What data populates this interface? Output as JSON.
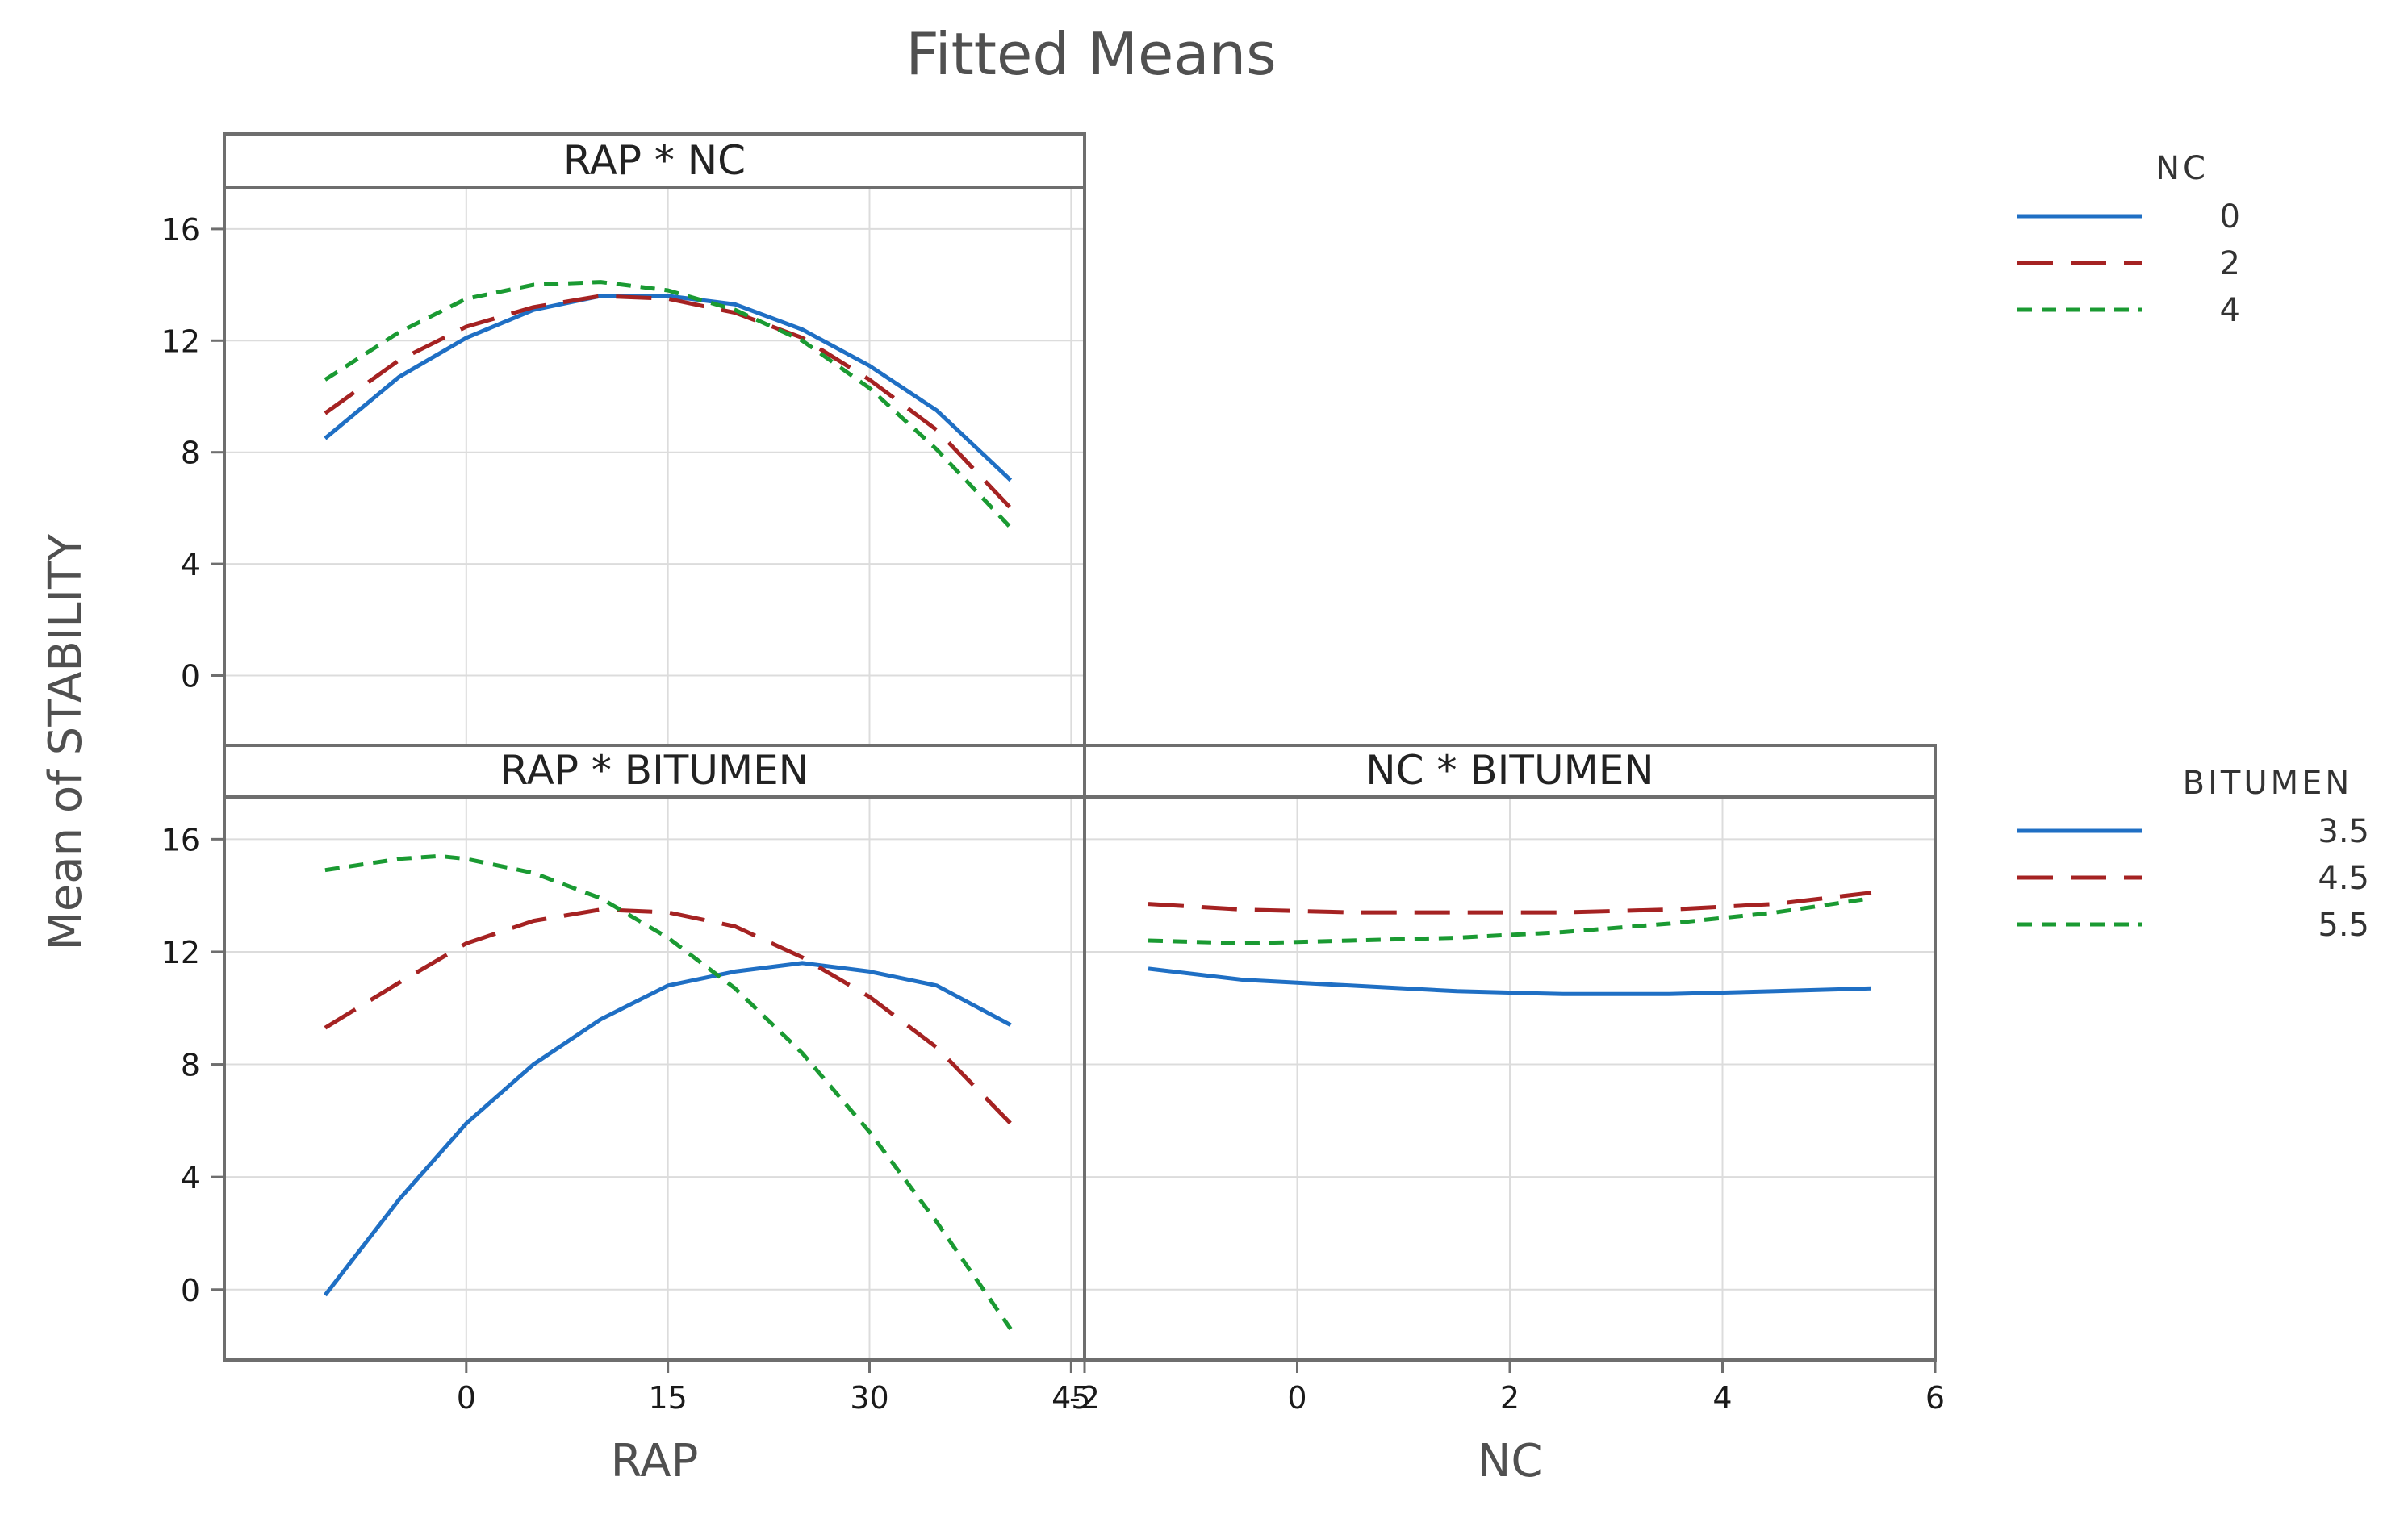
{
  "chart_data": {
    "type": "line",
    "title": "Fitted Means",
    "ylabel": "Mean of STABILITY",
    "colors": {
      "series1": "#1f6fc4",
      "series2": "#a52222",
      "series3": "#1a9a32"
    },
    "y_ticks": [
      "16",
      "12",
      "8",
      "4",
      "0"
    ],
    "ylim": [
      -2.5,
      17.5
    ],
    "panels": [
      {
        "id": "rap-nc",
        "strip": "RAP * NC",
        "xlim": [
          -18,
          46
        ],
        "x_ticks": [
          0,
          15,
          30,
          45
        ],
        "x_tick_labels": [
          "0",
          "15",
          "30",
          "45"
        ],
        "series": [
          {
            "name": "0",
            "style": "solid",
            "x": [
              -10.5,
              -5,
              0,
              5,
              10,
              15,
              20,
              25,
              30,
              35,
              40.5
            ],
            "y": [
              8.5,
              10.7,
              12.1,
              13.1,
              13.6,
              13.6,
              13.3,
              12.4,
              11.1,
              9.5,
              7.0
            ]
          },
          {
            "name": "2",
            "style": "long-dash",
            "x": [
              -10.5,
              -5,
              0,
              5,
              10,
              15,
              20,
              25,
              30,
              35,
              40.5
            ],
            "y": [
              9.4,
              11.3,
              12.5,
              13.2,
              13.6,
              13.5,
              13.0,
              12.1,
              10.6,
              8.8,
              6.0
            ]
          },
          {
            "name": "4",
            "style": "short-dash",
            "x": [
              -10.5,
              -5,
              0,
              5,
              10,
              15,
              20,
              25,
              30,
              35,
              40.5
            ],
            "y": [
              10.6,
              12.3,
              13.5,
              14.0,
              14.1,
              13.8,
              13.1,
              12.0,
              10.3,
              8.1,
              5.3
            ]
          }
        ]
      },
      {
        "id": "rap-bitumen",
        "strip": "RAP * BITUMEN",
        "xlabel": "RAP",
        "xlim": [
          -18,
          46
        ],
        "x_ticks": [
          0,
          15,
          30,
          45
        ],
        "x_tick_labels": [
          "0",
          "15",
          "30",
          "45"
        ],
        "series": [
          {
            "name": "3.5",
            "style": "solid",
            "x": [
              -10.5,
              -5,
              0,
              5,
              10,
              15,
              20,
              25,
              30,
              35,
              40.5
            ],
            "y": [
              -0.2,
              3.2,
              5.9,
              8.0,
              9.6,
              10.8,
              11.3,
              11.6,
              11.3,
              10.8,
              9.4
            ]
          },
          {
            "name": "4.5",
            "style": "long-dash",
            "x": [
              -10.5,
              -5,
              0,
              5,
              10,
              15,
              20,
              25,
              30,
              35,
              40.5
            ],
            "y": [
              9.3,
              10.9,
              12.3,
              13.1,
              13.5,
              13.4,
              12.9,
              11.8,
              10.4,
              8.6,
              5.9
            ]
          },
          {
            "name": "5.5",
            "style": "short-dash",
            "x": [
              -10.5,
              -5,
              -2,
              0,
              5,
              10,
              15,
              20,
              25,
              30,
              35,
              40.5
            ],
            "y": [
              14.9,
              15.3,
              15.4,
              15.3,
              14.8,
              13.9,
              12.5,
              10.7,
              8.4,
              5.6,
              2.4,
              -1.4
            ]
          }
        ]
      },
      {
        "id": "nc-bitumen",
        "strip": "NC * BITUMEN",
        "xlabel": "NC",
        "xlim": [
          -2,
          6
        ],
        "x_ticks": [
          -2,
          0,
          2,
          4,
          6
        ],
        "x_tick_labels": [
          "-2",
          "0",
          "2",
          "4",
          "6"
        ],
        "series": [
          {
            "name": "3.5",
            "style": "solid",
            "x": [
              -1.4,
              -0.5,
              0.5,
              1.5,
              2.5,
              3.5,
              4.5,
              5.4
            ],
            "y": [
              11.4,
              11.0,
              10.8,
              10.6,
              10.5,
              10.5,
              10.6,
              10.7
            ]
          },
          {
            "name": "4.5",
            "style": "long-dash",
            "x": [
              -1.4,
              -0.5,
              0.5,
              1.5,
              2.5,
              3.5,
              4.5,
              5.4
            ],
            "y": [
              13.7,
              13.5,
              13.4,
              13.4,
              13.4,
              13.5,
              13.7,
              14.1
            ]
          },
          {
            "name": "5.5",
            "style": "short-dash",
            "x": [
              -1.4,
              -0.5,
              0.5,
              1.5,
              2.5,
              3.5,
              4.5,
              5.4
            ],
            "y": [
              12.4,
              12.3,
              12.4,
              12.5,
              12.7,
              13.0,
              13.4,
              13.9
            ]
          }
        ]
      }
    ],
    "legends": [
      {
        "id": "nc-legend",
        "title": "NC",
        "entries": [
          "0",
          "2",
          "4"
        ]
      },
      {
        "id": "bitumen-legend",
        "title": "BITUMEN",
        "entries": [
          "3.5",
          "4.5",
          "5.5"
        ]
      }
    ]
  }
}
